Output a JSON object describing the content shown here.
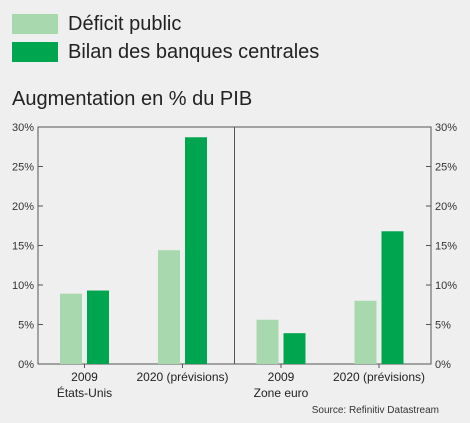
{
  "chart_data": {
    "type": "bar",
    "title": "Augmentation en % du PIB",
    "ylim": [
      0,
      30
    ],
    "yticks": [
      "0%",
      "5%",
      "10%",
      "15%",
      "20%",
      "25%",
      "30%"
    ],
    "legend_placement": "top-left",
    "grid": false,
    "panels": [
      {
        "group": "États-Unis",
        "categories": [
          "2009",
          "2020 (prévisions)"
        ],
        "series": [
          {
            "name": "Déficit public",
            "color": "#a8d8ad",
            "values": [
              8.9,
              14.4
            ]
          },
          {
            "name": "Bilan des banques centrales",
            "color": "#00a550",
            "values": [
              9.3,
              28.7
            ]
          }
        ]
      },
      {
        "group": "Zone euro",
        "categories": [
          "2009",
          "2020 (prévisions)"
        ],
        "series": [
          {
            "name": "Déficit public",
            "color": "#a8d8ad",
            "values": [
              5.6,
              8.0
            ]
          },
          {
            "name": "Bilan des banques centrales",
            "color": "#00a550",
            "values": [
              3.9,
              16.8
            ]
          }
        ]
      }
    ],
    "source": "Source: Refinitiv Datastream"
  },
  "legend": [
    {
      "label": "Déficit public",
      "color": "#a8d8ad"
    },
    {
      "label": "Bilan des banques centrales",
      "color": "#00a550"
    }
  ]
}
